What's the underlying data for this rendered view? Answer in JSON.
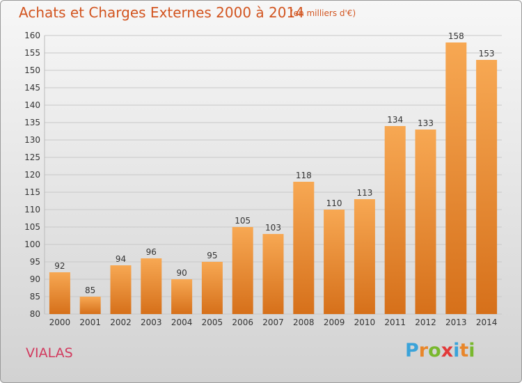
{
  "header": {
    "title": "Achats et Charges Externes 2000 à 2014",
    "unit": "(en milliers d'€)"
  },
  "footer": {
    "commune": "VIALAS",
    "logo_letters": [
      "P",
      "r",
      "o",
      "x",
      "i",
      "t",
      "i"
    ],
    "logo_colors": [
      "#3aa3d9",
      "#e8862a",
      "#79b82e",
      "#e23a3a",
      "#3aa3d9",
      "#e8862a",
      "#79b82e"
    ]
  },
  "colors": {
    "bar_top": "#f7a853",
    "bar_bottom": "#d6701a",
    "grid": "#c8c8c8",
    "title": "#d2541f"
  },
  "chart_data": {
    "type": "bar",
    "title": "Achats et Charges Externes 2000 à 2014",
    "subtitle": "(en milliers d'€)",
    "categories": [
      "2000",
      "2001",
      "2002",
      "2003",
      "2004",
      "2005",
      "2006",
      "2007",
      "2008",
      "2009",
      "2010",
      "2011",
      "2012",
      "2013",
      "2014"
    ],
    "values": [
      92,
      85,
      94,
      96,
      90,
      95,
      105,
      103,
      118,
      110,
      113,
      134,
      133,
      158,
      153
    ],
    "ylim": [
      80,
      160
    ],
    "yticks": [
      80,
      85,
      90,
      95,
      100,
      105,
      110,
      115,
      120,
      125,
      130,
      135,
      140,
      145,
      150,
      155,
      160
    ],
    "grid": true,
    "data_labels": true
  }
}
